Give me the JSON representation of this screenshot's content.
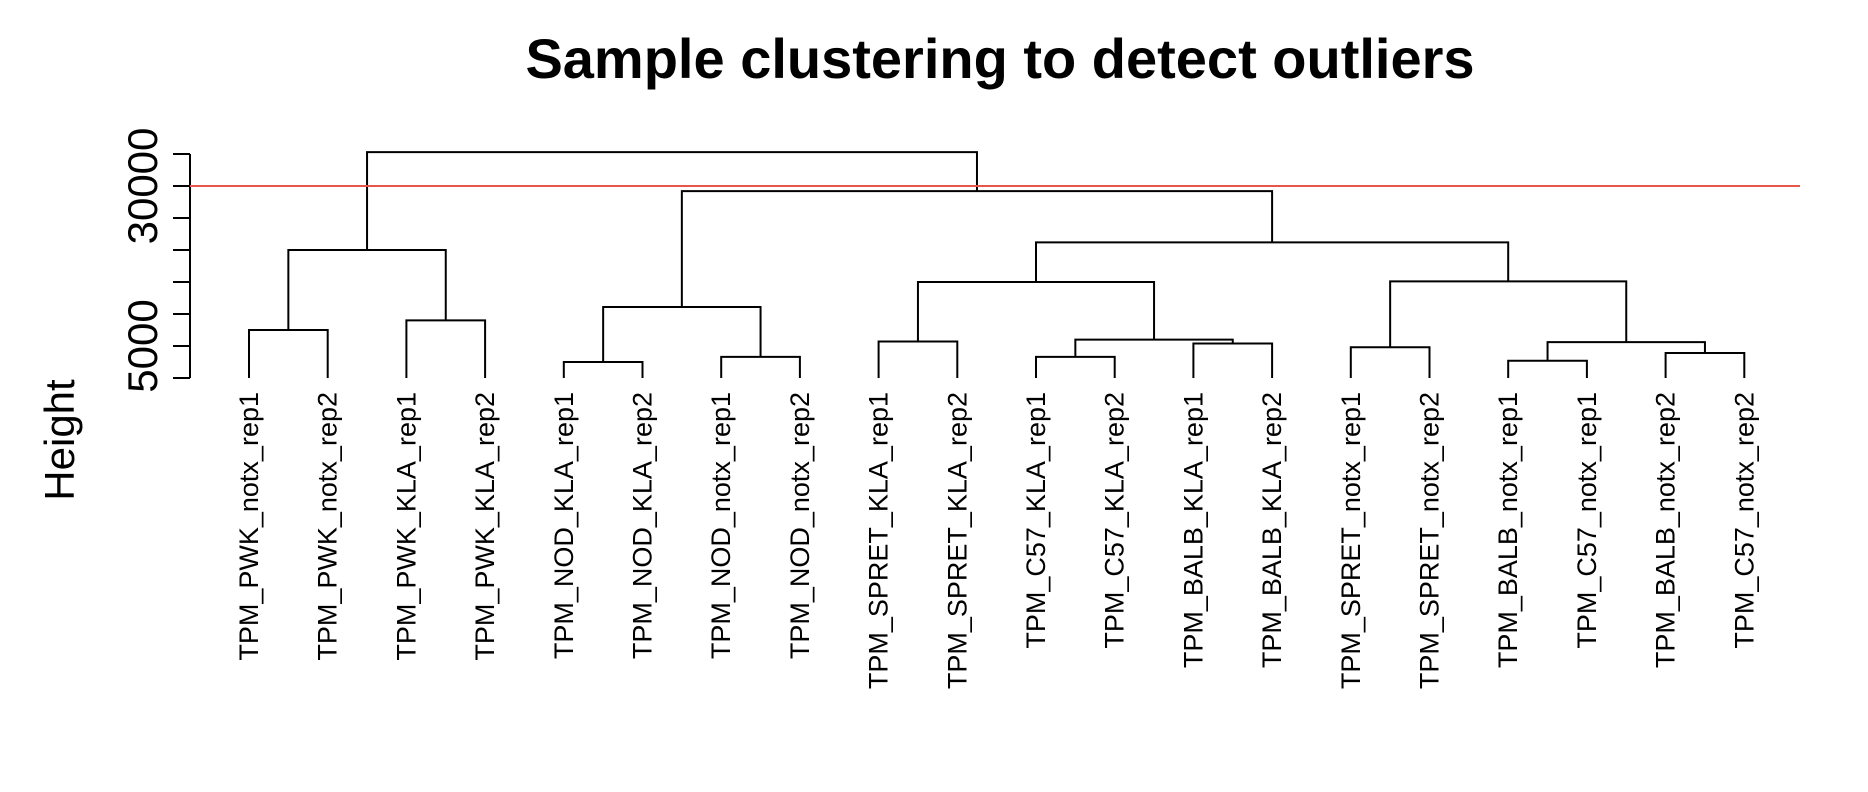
{
  "chart_data": {
    "type": "dendrogram",
    "title": "Sample clustering to detect outliers",
    "ylabel": "Height",
    "ylim": [
      0,
      35000
    ],
    "yticks": [
      0,
      5000,
      10000,
      15000,
      20000,
      25000,
      30000,
      35000
    ],
    "ytick_labels": [
      {
        "value": 5000,
        "label": "5000"
      },
      {
        "value": 30000,
        "label": "30000"
      }
    ],
    "cut_height": 30000,
    "cut_color": "#e8564a",
    "leaves": [
      "TPM_PWK_notx_rep1",
      "TPM_PWK_notx_rep2",
      "TPM_PWK_KLA_rep1",
      "TPM_PWK_KLA_rep2",
      "TPM_NOD_KLA_rep1",
      "TPM_NOD_KLA_rep2",
      "TPM_NOD_notx_rep1",
      "TPM_NOD_notx_rep2",
      "TPM_SPRET_KLA_rep1",
      "TPM_SPRET_KLA_rep2",
      "TPM_C57_KLA_rep1",
      "TPM_C57_KLA_rep2",
      "TPM_BALB_KLA_rep1",
      "TPM_BALB_KLA_rep2",
      "TPM_SPRET_notx_rep1",
      "TPM_SPRET_notx_rep2",
      "TPM_BALB_notx_rep1",
      "TPM_C57_notx_rep1",
      "TPM_BALB_notx_rep2",
      "TPM_C57_notx_rep2"
    ],
    "merges": [
      {
        "left": -1,
        "right": -2,
        "height": 7500
      },
      {
        "left": -3,
        "right": -4,
        "height": 9000
      },
      {
        "left": 1,
        "right": 2,
        "height": 20000
      },
      {
        "left": -5,
        "right": -6,
        "height": 2500
      },
      {
        "left": -7,
        "right": -8,
        "height": 3300
      },
      {
        "left": 4,
        "right": 5,
        "height": 11100
      },
      {
        "left": -9,
        "right": -10,
        "height": 5700
      },
      {
        "left": -11,
        "right": -12,
        "height": 3300
      },
      {
        "left": -13,
        "right": -14,
        "height": 5400
      },
      {
        "left": 8,
        "right": 9,
        "height": 6000
      },
      {
        "left": 7,
        "right": 10,
        "height": 15000
      },
      {
        "left": -15,
        "right": -16,
        "height": 4800
      },
      {
        "left": -17,
        "right": -18,
        "height": 2700
      },
      {
        "left": -19,
        "right": -20,
        "height": 3900
      },
      {
        "left": 13,
        "right": 14,
        "height": 5600
      },
      {
        "left": 12,
        "right": 15,
        "height": 15100
      },
      {
        "left": 11,
        "right": 16,
        "height": 21200
      },
      {
        "left": 6,
        "right": 17,
        "height": 29200
      },
      {
        "left": 3,
        "right": 18,
        "height": 35300
      }
    ]
  }
}
